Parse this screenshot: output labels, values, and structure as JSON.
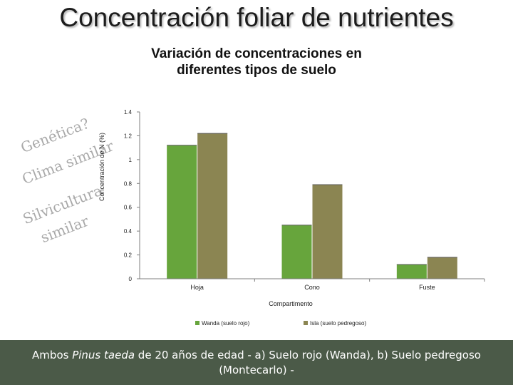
{
  "slide": {
    "title": "Concentración foliar de nutrientes",
    "side_words": [
      "Genética?",
      "Clima similar",
      "Silvicultura",
      "similar"
    ]
  },
  "chart_data": {
    "type": "bar",
    "title_lines": [
      "Variación de concentraciones en",
      "diferentes tipos de suelo"
    ],
    "ylabel": "Concentración de N (%)",
    "xlabel": "Compartimento",
    "categories": [
      "Hoja",
      "Cono",
      "Fuste"
    ],
    "ylim": [
      0,
      1.4
    ],
    "yticks": [
      "0",
      "0.2",
      "0.4",
      "0.6",
      "0.8",
      "1",
      "1.2",
      "1.4"
    ],
    "series": [
      {
        "name": "Wanda (suelo rojo)",
        "color": "#67a53c",
        "values": [
          1.12,
          0.45,
          0.12
        ]
      },
      {
        "name": "Isla (suelo pedregoso)",
        "color": "#8b8552",
        "values": [
          1.22,
          0.79,
          0.18
        ]
      }
    ],
    "legend_position": "bottom",
    "grid": false
  },
  "footer": {
    "prefix": "Ambos ",
    "species": "Pinus taeda",
    "suffix": " de 20 años de edad - a) Suelo rojo (Wanda), b) Suelo pedregoso",
    "line2": "(Montecarlo) -"
  }
}
